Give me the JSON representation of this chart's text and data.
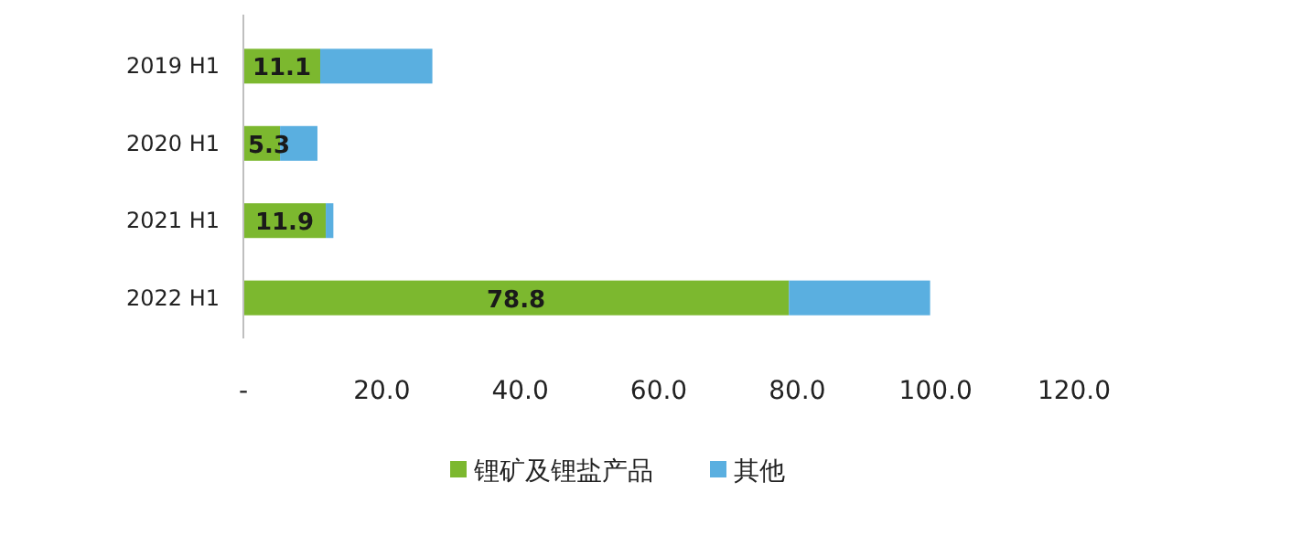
{
  "chart_data": {
    "type": "bar",
    "orientation": "horizontal",
    "stacked": true,
    "categories": [
      "2019 H1",
      "2020 H1",
      "2021 H1",
      "2022 H1"
    ],
    "series": [
      {
        "name": "锂矿及锂盐产品",
        "color": "#7cb82f",
        "values": [
          11.1,
          5.3,
          11.9,
          78.8
        ],
        "value_labels": [
          "11.1",
          "5.3",
          "11.9",
          "78.8"
        ]
      },
      {
        "name": "其他",
        "color": "#5aafe0",
        "values": [
          16.2,
          5.4,
          1.1,
          20.4
        ]
      }
    ],
    "xlim": [
      0,
      120
    ],
    "xticks": [
      {
        "value": 0,
        "label": "-"
      },
      {
        "value": 20,
        "label": "20.0"
      },
      {
        "value": 40,
        "label": "40.0"
      },
      {
        "value": 60,
        "label": "60.0"
      },
      {
        "value": 80,
        "label": "80.0"
      },
      {
        "value": 100,
        "label": "100.0"
      },
      {
        "value": 120,
        "label": "120.0"
      }
    ],
    "grid": false,
    "legend": "bottom"
  }
}
